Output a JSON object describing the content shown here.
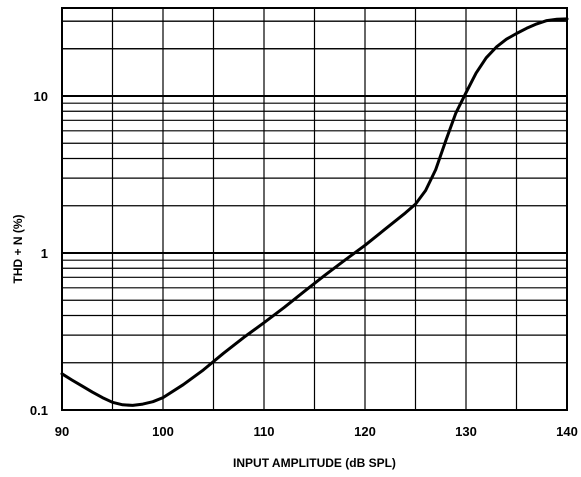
{
  "chart_data": {
    "type": "line",
    "title": "",
    "xlabel": "INPUT AMPLITUDE (dB SPL)",
    "ylabel": "THD + N (%)",
    "xlim": [
      90,
      140
    ],
    "ylim": [
      0.1,
      30
    ],
    "yscale": "log",
    "grid": true,
    "x_ticks": [
      90,
      100,
      110,
      120,
      130,
      140
    ],
    "x_tick_labels": [
      "90",
      "100",
      "110",
      "120",
      "130",
      "140"
    ],
    "y_tick_labels": [
      {
        "value": 0.1,
        "label": "0.1"
      },
      {
        "value": 1,
        "label": "1"
      },
      {
        "value": 10,
        "label": "10"
      }
    ],
    "series": [
      {
        "name": "",
        "x": [
          90,
          91,
          92,
          93,
          94,
          95,
          96,
          97,
          98,
          99,
          100,
          102,
          104,
          106,
          108,
          110,
          112,
          114,
          116,
          118,
          120,
          122,
          124,
          125,
          126,
          127,
          128,
          129,
          130,
          131,
          132,
          133,
          134,
          135,
          136,
          137,
          138,
          139,
          140
        ],
        "y": [
          0.17,
          0.155,
          0.142,
          0.13,
          0.12,
          0.112,
          0.108,
          0.107,
          0.109,
          0.113,
          0.12,
          0.145,
          0.18,
          0.23,
          0.29,
          0.36,
          0.45,
          0.57,
          0.72,
          0.9,
          1.12,
          1.42,
          1.8,
          2.05,
          2.5,
          3.4,
          5.2,
          7.8,
          10.5,
          14,
          17.5,
          20.5,
          23,
          25,
          27,
          28.8,
          30.2,
          30.8,
          31
        ]
      }
    ]
  }
}
